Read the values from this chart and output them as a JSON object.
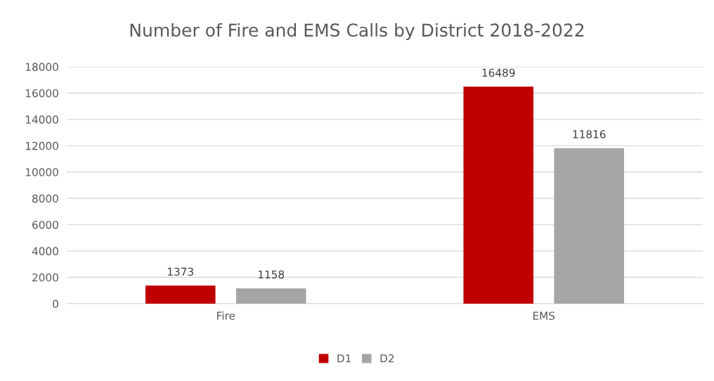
{
  "chart_data": {
    "type": "bar",
    "title": "Number of Fire and EMS Calls by District 2018-2022",
    "categories": [
      "Fire",
      "EMS"
    ],
    "series": [
      {
        "name": "D1",
        "color": "#c00000",
        "values": [
          1373,
          16489
        ]
      },
      {
        "name": "D2",
        "color": "#a5a5a5",
        "values": [
          1158,
          11816
        ]
      }
    ],
    "ylim": [
      0,
      18000
    ],
    "yticks": [
      0,
      2000,
      4000,
      6000,
      8000,
      10000,
      12000,
      14000,
      16000,
      18000
    ],
    "grid": "y",
    "legend": "bottom",
    "data_labels": true
  }
}
